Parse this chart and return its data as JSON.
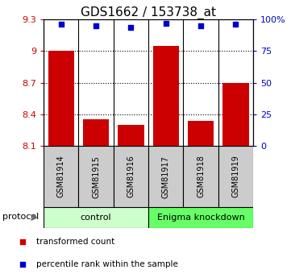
{
  "title": "GDS1662 / 153738_at",
  "samples": [
    "GSM81914",
    "GSM81915",
    "GSM81916",
    "GSM81917",
    "GSM81918",
    "GSM81919"
  ],
  "bar_values": [
    9.0,
    8.35,
    8.3,
    9.05,
    8.34,
    8.7
  ],
  "bar_bottom": 8.1,
  "percentile_values": [
    96,
    95,
    94,
    97,
    95,
    96
  ],
  "ylim_left": [
    8.1,
    9.3
  ],
  "ylim_right": [
    0,
    100
  ],
  "yticks_left": [
    8.1,
    8.4,
    8.7,
    9.0,
    9.3
  ],
  "ytick_labels_left": [
    "8.1",
    "8.4",
    "8.7",
    "9",
    "9.3"
  ],
  "yticks_right": [
    0,
    25,
    50,
    75,
    100
  ],
  "ytick_labels_right": [
    "0",
    "25",
    "50",
    "75",
    "100%"
  ],
  "hlines": [
    9.0,
    8.7,
    8.4
  ],
  "bar_color": "#cc0000",
  "percentile_color": "#0000cc",
  "left_tick_color": "#cc0000",
  "right_tick_color": "#0000cc",
  "title_fontsize": 11,
  "control_label": "control",
  "knockdown_label": "Enigma knockdown",
  "protocol_label": "protocol",
  "legend_red_label": "transformed count",
  "legend_blue_label": "percentile rank within the sample",
  "control_color": "#ccffcc",
  "knockdown_color": "#66ff66",
  "sample_box_color": "#cccccc",
  "bar_width": 0.75,
  "figsize": [
    3.61,
    3.45
  ],
  "dpi": 100
}
